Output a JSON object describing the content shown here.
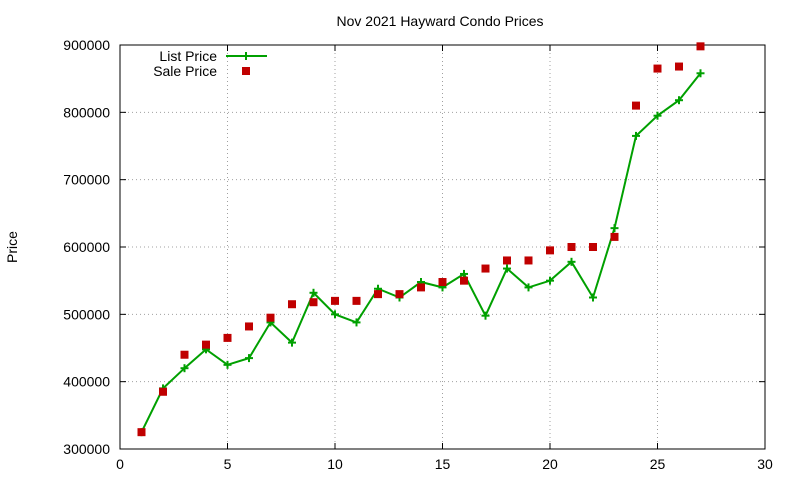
{
  "chart_data": {
    "type": "line",
    "title": "Nov 2021 Hayward Condo Prices",
    "xlabel": "",
    "ylabel": "Price",
    "xlim": [
      0,
      30
    ],
    "ylim": [
      300000,
      900000
    ],
    "x_ticks": [
      0,
      5,
      10,
      15,
      20,
      25,
      30
    ],
    "y_ticks": [
      300000,
      400000,
      500000,
      600000,
      700000,
      800000,
      900000
    ],
    "grid": true,
    "legend_position": "top-left",
    "series": [
      {
        "name": "List Price",
        "style": "line+plus-markers",
        "color": "#00a000",
        "points": [
          [
            1,
            325000
          ],
          [
            2,
            390000
          ],
          [
            3,
            420000
          ],
          [
            4,
            448000
          ],
          [
            5,
            425000
          ],
          [
            6,
            435000
          ],
          [
            7,
            488000
          ],
          [
            8,
            458000
          ],
          [
            9,
            532000
          ],
          [
            10,
            500000
          ],
          [
            11,
            488000
          ],
          [
            12,
            538000
          ],
          [
            13,
            525000
          ],
          [
            14,
            548000
          ],
          [
            15,
            540000
          ],
          [
            16,
            560000
          ],
          [
            17,
            498000
          ],
          [
            18,
            568000
          ],
          [
            19,
            540000
          ],
          [
            20,
            550000
          ],
          [
            21,
            578000
          ],
          [
            22,
            525000
          ],
          [
            23,
            628000
          ],
          [
            24,
            765000
          ],
          [
            25,
            795000
          ],
          [
            26,
            818000
          ],
          [
            27,
            858000
          ]
        ]
      },
      {
        "name": "Sale Price",
        "style": "square-markers",
        "color": "#c00000",
        "points": [
          [
            1,
            325000
          ],
          [
            2,
            385000
          ],
          [
            3,
            440000
          ],
          [
            4,
            455000
          ],
          [
            5,
            465000
          ],
          [
            6,
            482000
          ],
          [
            7,
            495000
          ],
          [
            8,
            515000
          ],
          [
            9,
            518000
          ],
          [
            10,
            520000
          ],
          [
            11,
            520000
          ],
          [
            12,
            530000
          ],
          [
            13,
            530000
          ],
          [
            14,
            540000
          ],
          [
            15,
            548000
          ],
          [
            16,
            550000
          ],
          [
            17,
            568000
          ],
          [
            18,
            580000
          ],
          [
            19,
            580000
          ],
          [
            20,
            595000
          ],
          [
            21,
            600000
          ],
          [
            22,
            600000
          ],
          [
            23,
            615000
          ],
          [
            24,
            810000
          ],
          [
            25,
            865000
          ],
          [
            26,
            868000
          ],
          [
            27,
            898000
          ]
        ]
      }
    ]
  }
}
